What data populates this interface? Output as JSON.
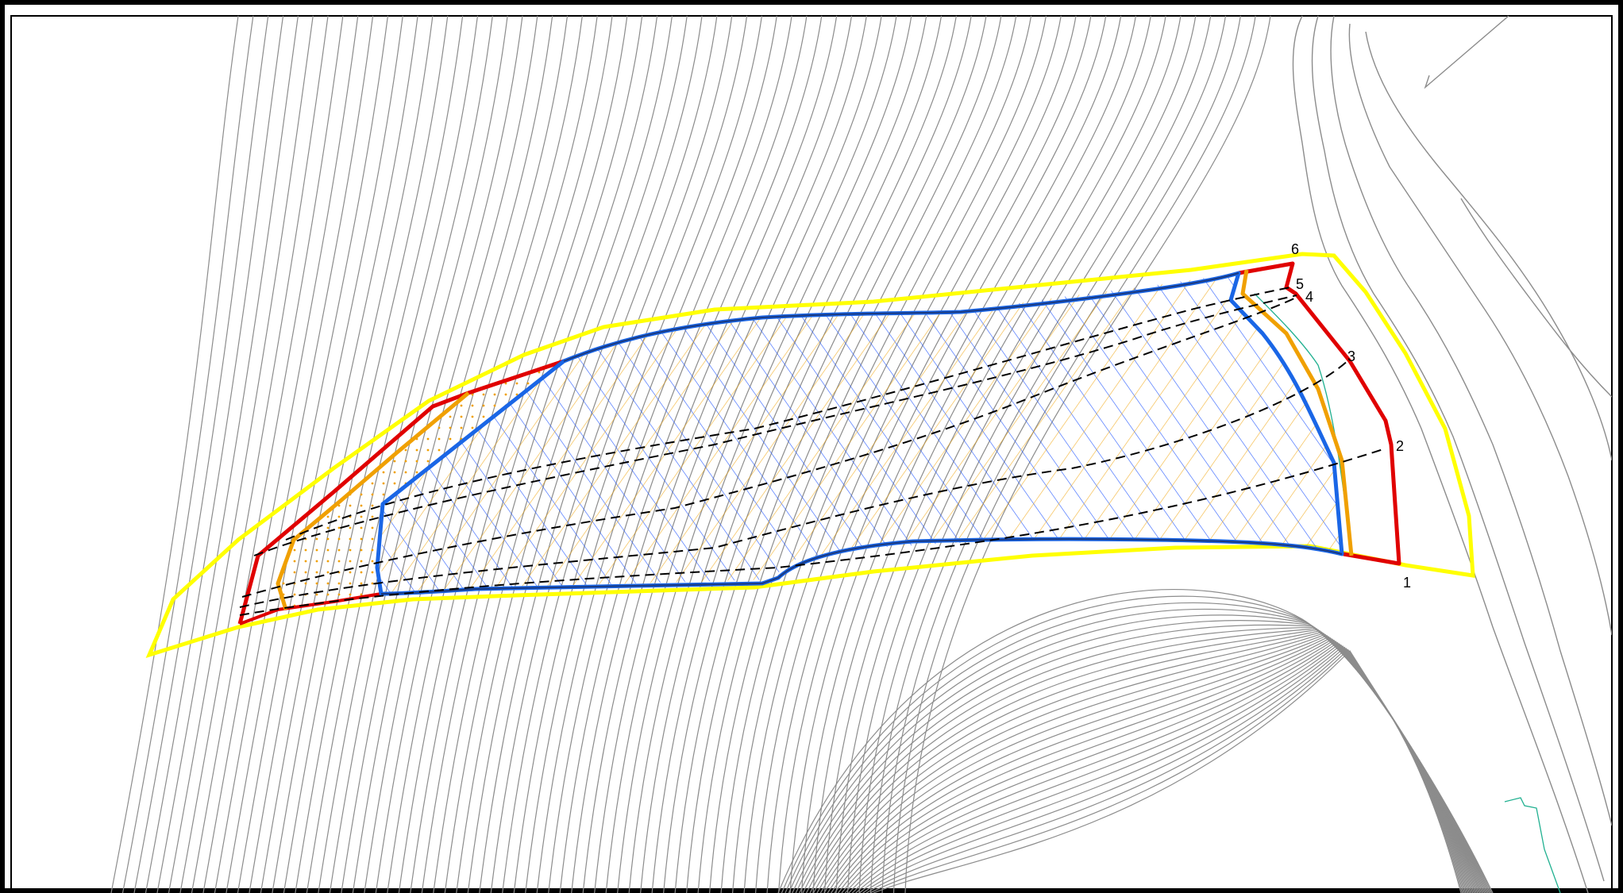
{
  "map": {
    "colors": {
      "contour": "#8c8c8c",
      "outer_boundary": "#ffff00",
      "red_boundary": "#e00000",
      "orange_boundary": "#f0a000",
      "blue_boundary": "#1a66e6",
      "hatch_blue": "#2a5cff",
      "hatch_orange": "#f0a000",
      "dashed_line": "#000000",
      "teal_line": "#20b090",
      "frame": "#000000"
    },
    "markers": [
      {
        "id": "1",
        "label": "1"
      },
      {
        "id": "2",
        "label": "2"
      },
      {
        "id": "3",
        "label": "3"
      },
      {
        "id": "4",
        "label": "4"
      },
      {
        "id": "5",
        "label": "5"
      },
      {
        "id": "6",
        "label": "6"
      }
    ]
  }
}
